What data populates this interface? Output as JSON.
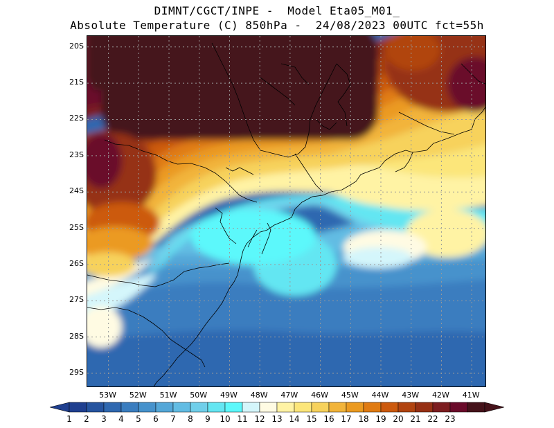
{
  "title": {
    "line1": "DIMNT/CGCT/INPE -  Model Eta05_M01_",
    "line2": "Absolute Temperature (C) 850hPa -  24/08/2023 00UTC fct=55h"
  },
  "map": {
    "lat_labels": [
      "20S",
      "21S",
      "22S",
      "23S",
      "24S",
      "25S",
      "26S",
      "27S",
      "28S",
      "29S"
    ],
    "lon_labels": [
      "53W",
      "52W",
      "51W",
      "50W",
      "49W",
      "48W",
      "47W",
      "46W",
      "45W",
      "44W",
      "43W",
      "42W",
      "41W"
    ],
    "lat_range": [
      -29.4,
      -19.7
    ],
    "lon_range": [
      -53.7,
      -40.5
    ],
    "gridlines": true
  },
  "colorbar": {
    "labels": [
      "1",
      "2",
      "3",
      "4",
      "5",
      "6",
      "7",
      "8",
      "9",
      "10",
      "11",
      "12",
      "13",
      "14",
      "15",
      "16",
      "17",
      "18",
      "19",
      "20",
      "21",
      "22",
      "23"
    ],
    "colors": [
      "#1f3f8f",
      "#26549f",
      "#2f68b0",
      "#3a7dbf",
      "#4692cc",
      "#54a7d8",
      "#62bce3",
      "#70cfea",
      "#64e6f2",
      "#5cf8fb",
      "#d4f6fb",
      "#fffbe3",
      "#fff3a4",
      "#fce67a",
      "#f7d25c",
      "#f2b43a",
      "#eb9a20",
      "#e07b12",
      "#cc5a0e",
      "#b14410",
      "#963014",
      "#7c1d20",
      "#6a0a2a",
      "#45121a"
    ],
    "arrow_left_color": "#1f3f8f",
    "arrow_right_color": "#45121a"
  }
}
